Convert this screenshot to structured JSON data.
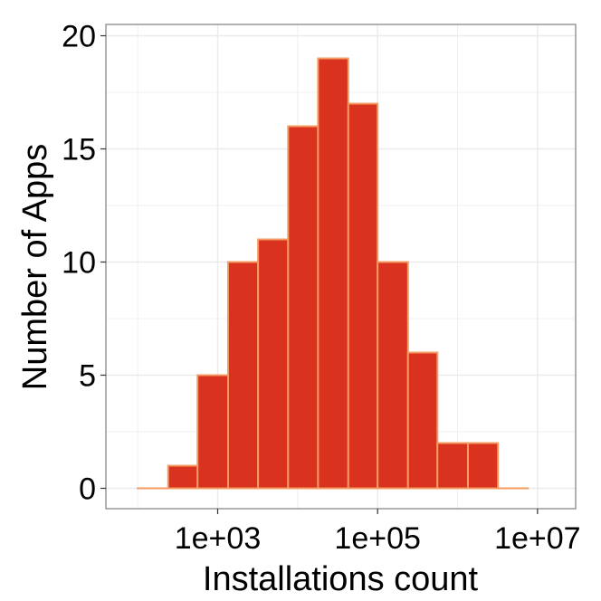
{
  "chart_data": {
    "type": "bar",
    "xlabel": "Installations count",
    "ylabel": "Number of Apps",
    "x_scale": "log10",
    "xlim": [
      40,
      30000000
    ],
    "ylim": [
      -0.9,
      20.5
    ],
    "x_ticks": [
      {
        "value": 1000,
        "label": "1e+03"
      },
      {
        "value": 100000,
        "label": "1e+05"
      },
      {
        "value": 10000000,
        "label": "1e+07"
      }
    ],
    "y_ticks": [
      {
        "value": 0,
        "label": "0"
      },
      {
        "value": 5,
        "label": "5"
      },
      {
        "value": 10,
        "label": "10"
      },
      {
        "value": 15,
        "label": "15"
      },
      {
        "value": 20,
        "label": "20"
      }
    ],
    "bins": [
      {
        "x_start": 100,
        "x_end": 240,
        "count": 0
      },
      {
        "x_start": 240,
        "x_end": 560,
        "count": 1
      },
      {
        "x_start": 560,
        "x_end": 1350,
        "count": 5
      },
      {
        "x_start": 1350,
        "x_end": 3200,
        "count": 10
      },
      {
        "x_start": 3200,
        "x_end": 7600,
        "count": 11
      },
      {
        "x_start": 7600,
        "x_end": 18000,
        "count": 16
      },
      {
        "x_start": 18000,
        "x_end": 43000,
        "count": 19
      },
      {
        "x_start": 43000,
        "x_end": 100000,
        "count": 17
      },
      {
        "x_start": 100000,
        "x_end": 240000,
        "count": 10
      },
      {
        "x_start": 240000,
        "x_end": 560000,
        "count": 6
      },
      {
        "x_start": 560000,
        "x_end": 1350000,
        "count": 2
      },
      {
        "x_start": 1350000,
        "x_end": 3200000,
        "count": 2
      },
      {
        "x_start": 3200000,
        "x_end": 7600000,
        "count": 0
      }
    ],
    "grid": true,
    "colors": {
      "bar_fill": "#d9321f",
      "bar_edge": "#f59a62",
      "grid": "#ebebeb",
      "panel_border": "#7f7f7f",
      "text": "#000000"
    }
  }
}
